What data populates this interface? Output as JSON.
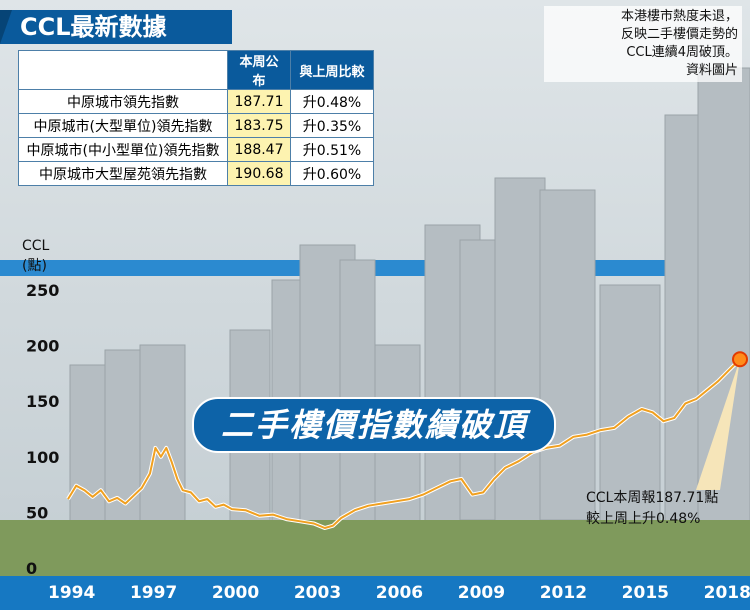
{
  "title": "CCL最新數據",
  "caption": [
    "本港樓市熱度未退，",
    "反映二手樓價走勢的",
    "CCL連續4周破頂。",
    "資料圖片"
  ],
  "table": {
    "headers": [
      "本周公布",
      "與上周比較"
    ],
    "rows": [
      {
        "name": "中原城市領先指數",
        "value": "187.71",
        "change": "升0.48%"
      },
      {
        "name": "中原城市(大型單位)領先指數",
        "value": "183.75",
        "change": "升0.35%"
      },
      {
        "name": "中原城市(中小型單位)領先指數",
        "value": "188.47",
        "change": "升0.51%"
      },
      {
        "name": "中原城市大型屋苑領先指數",
        "value": "190.68",
        "change": "升0.60%"
      }
    ]
  },
  "banner": "二手樓價指數續破頂",
  "callout": [
    "CCL本周報187.71點",
    "較上周上升0.48%"
  ],
  "colors": {
    "line": "#f0a020",
    "accent": "#0a5a9c",
    "axis_bar": "#1678c2"
  },
  "chart_data": {
    "type": "line",
    "ylabel": [
      "CCL",
      "(點)"
    ],
    "ylim": [
      0,
      250
    ],
    "yticks": [
      "0",
      "50",
      "100",
      "150",
      "200",
      "250"
    ],
    "xticks": [
      "1994",
      "1997",
      "2000",
      "2003",
      "2006",
      "2009",
      "2012",
      "2015",
      "2018"
    ],
    "xlim": [
      1994.0,
      2018.6
    ],
    "series": [
      {
        "x": [
          1994.0,
          1994.3,
          1994.6,
          1994.9,
          1995.2,
          1995.5,
          1995.8,
          1996.1,
          1996.4,
          1996.7,
          1997.0,
          1997.2,
          1997.4,
          1997.6,
          1997.8,
          1998.0,
          1998.2,
          1998.5,
          1998.8,
          1999.1,
          1999.4,
          1999.7,
          2000.0,
          2000.5,
          2001.0,
          2001.5,
          2002.0,
          2002.5,
          2003.0,
          2003.4,
          2003.7,
          2004.0,
          2004.5,
          2005.0,
          2005.5,
          2006.0,
          2006.5,
          2007.0,
          2007.5,
          2008.0,
          2008.4,
          2008.8,
          2009.2,
          2009.6,
          2010.0,
          2010.5,
          2011.0,
          2011.5,
          2012.0,
          2012.5,
          2013.0,
          2013.5,
          2014.0,
          2014.5,
          2015.0,
          2015.4,
          2015.8,
          2016.2,
          2016.6,
          2017.0,
          2017.4,
          2017.8,
          2018.2,
          2018.6
        ],
        "y": [
          62,
          74,
          70,
          64,
          70,
          60,
          63,
          58,
          65,
          72,
          85,
          108,
          100,
          108,
          95,
          80,
          70,
          68,
          60,
          62,
          55,
          57,
          53,
          52,
          47,
          48,
          44,
          42,
          40,
          36,
          38,
          45,
          52,
          56,
          58,
          60,
          62,
          66,
          72,
          78,
          80,
          66,
          68,
          80,
          90,
          96,
          104,
          108,
          110,
          118,
          120,
          124,
          126,
          136,
          143,
          140,
          132,
          135,
          148,
          152,
          160,
          168,
          178,
          187.71
        ]
      }
    ]
  }
}
